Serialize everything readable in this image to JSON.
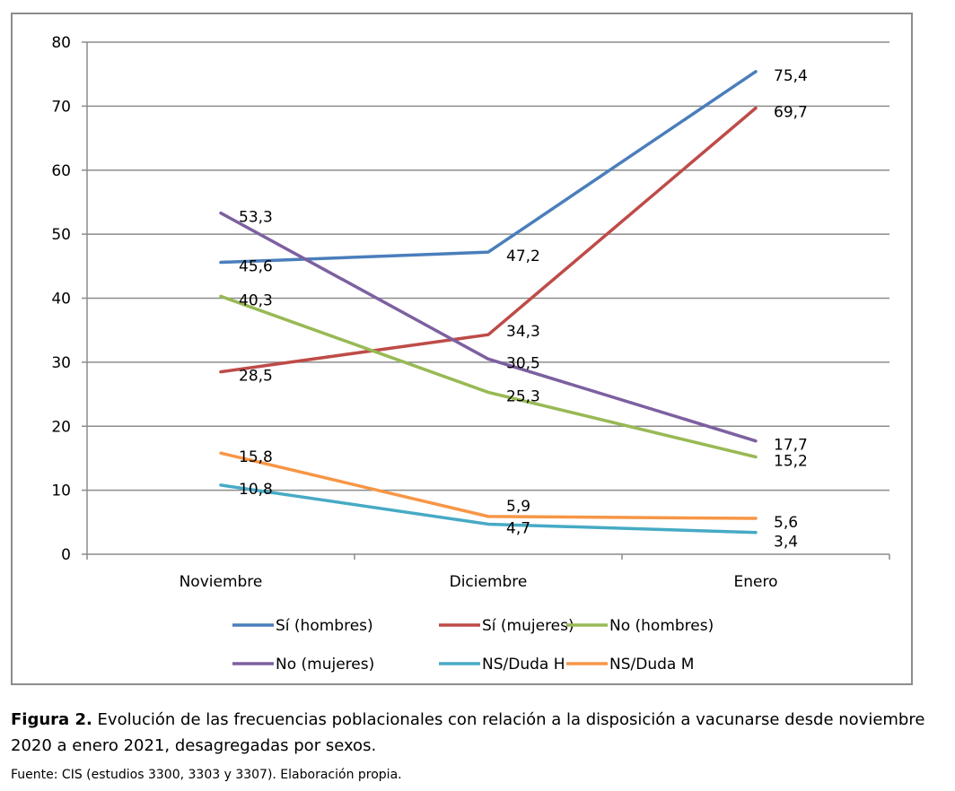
{
  "chart_data": {
    "type": "line",
    "categories": [
      "Noviembre",
      "Diciembre",
      "Enero"
    ],
    "ylim": [
      0,
      80
    ],
    "yticks": [
      0,
      10,
      20,
      30,
      40,
      50,
      60,
      70,
      80
    ],
    "grid": true,
    "legend_position": "bottom",
    "series": [
      {
        "name": "Sí (hombres)",
        "color": "#4a7ebb",
        "values": [
          45.6,
          47.2,
          75.4
        ],
        "labels": [
          "45,6",
          "47,2",
          "75,4"
        ]
      },
      {
        "name": "Sí (mujeres)",
        "color": "#be4b48",
        "values": [
          28.5,
          34.3,
          69.7
        ],
        "labels": [
          "28,5",
          "34,3",
          "69,7"
        ]
      },
      {
        "name": "No (hombres)",
        "color": "#98b954",
        "values": [
          40.3,
          25.3,
          15.2
        ],
        "labels": [
          "40,3",
          "25,3",
          "15,2"
        ]
      },
      {
        "name": "No (mujeres)",
        "color": "#7d60a0",
        "values": [
          53.3,
          30.5,
          17.7
        ],
        "labels": [
          "53,3",
          "30,5",
          "17,7"
        ]
      },
      {
        "name": "NS/Duda H",
        "color": "#46aac5",
        "values": [
          10.8,
          4.7,
          3.4
        ],
        "labels": [
          "10,8",
          "4,7",
          "3,4"
        ]
      },
      {
        "name": "NS/Duda M",
        "color": "#f79646",
        "values": [
          15.8,
          5.9,
          5.6
        ],
        "labels": [
          "15,8",
          "5,9",
          "5,6"
        ]
      }
    ]
  },
  "caption": {
    "figure_label": "Figura 2.",
    "text": " Evolución de las frecuencias poblacionales con relación a la disposición a vacunarse desde noviembre 2020 a enero 2021, desagregadas por sexos."
  },
  "source": "Fuente: CIS (estudios 3300, 3303 y 3307). Elaboración propia."
}
